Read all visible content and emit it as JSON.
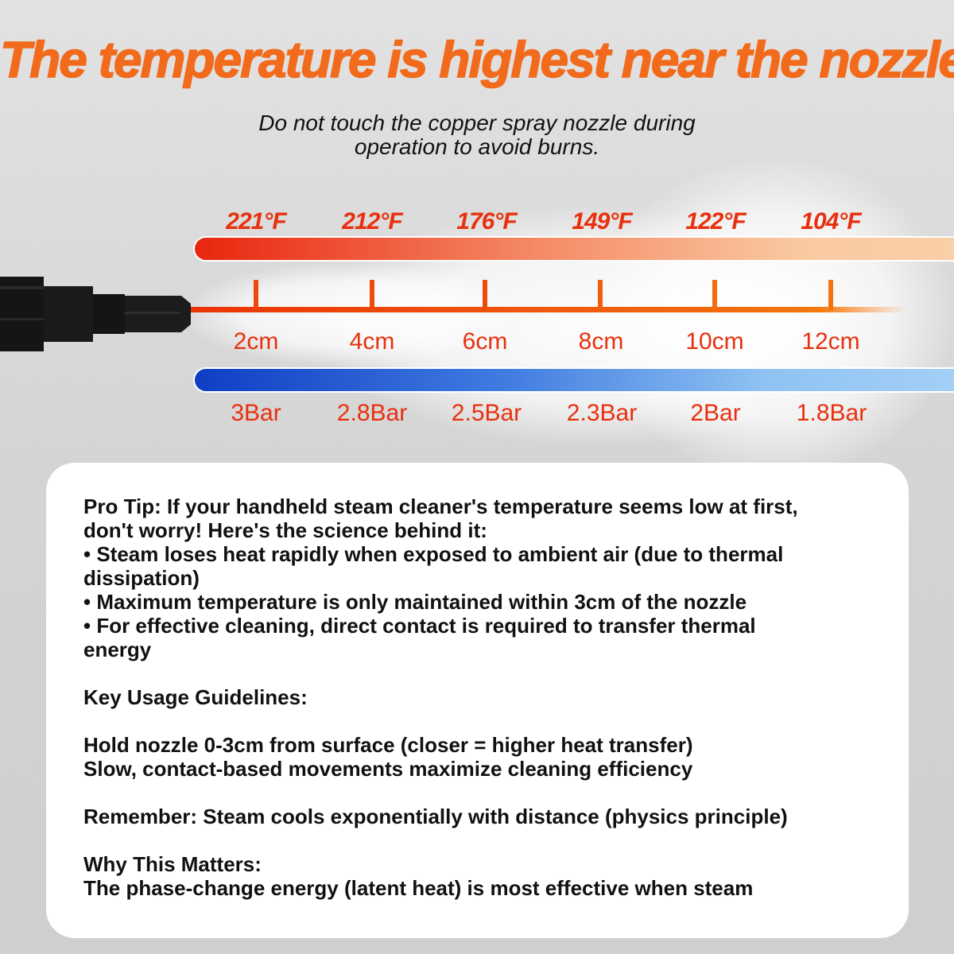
{
  "header": {
    "title": "The temperature is highest near the nozzle",
    "subtitle_line1": "Do not touch the copper spray nozzle during",
    "subtitle_line2": "operation to avoid burns."
  },
  "diagram": {
    "temperatures": [
      "221°F",
      "212°F",
      "176°F",
      "149°F",
      "122°F",
      "104°F"
    ],
    "distances": [
      "2cm",
      "4cm",
      "6cm",
      "8cm",
      "10cm",
      "12cm"
    ],
    "pressures": [
      "3Bar",
      "2.8Bar",
      "2.5Bar",
      "2.3Bar",
      "2Bar",
      "1.8Bar"
    ],
    "colors": {
      "label": "#e8300e",
      "title": "#f26a1b",
      "temp_bar_start": "#e8260e",
      "temp_bar_end": "#f9cfa8",
      "pressure_bar_start": "#0f3ec4",
      "pressure_bar_end": "#a4cff6"
    },
    "icons": [
      "steam-nozzle-icon",
      "steam-cloud"
    ]
  },
  "card": {
    "lines": [
      "Pro Tip: If your handheld steam cleaner's temperature seems low at first,",
      "don't worry! Here's the science behind it:",
      "• Steam loses heat rapidly when exposed to ambient air (due to thermal",
      "dissipation)",
      "• Maximum temperature is only maintained within 3cm of the nozzle",
      "• For effective cleaning, direct contact is required to transfer thermal",
      "energy",
      "",
      "Key Usage Guidelines:",
      "",
      "Hold nozzle 0-3cm from surface (closer = higher heat transfer)",
      "Slow, contact-based movements maximize cleaning efficiency",
      "",
      "Remember: Steam cools exponentially with distance (physics principle)",
      "",
      "Why This Matters:",
      "The phase-change energy (latent heat) is most effective when steam"
    ]
  }
}
